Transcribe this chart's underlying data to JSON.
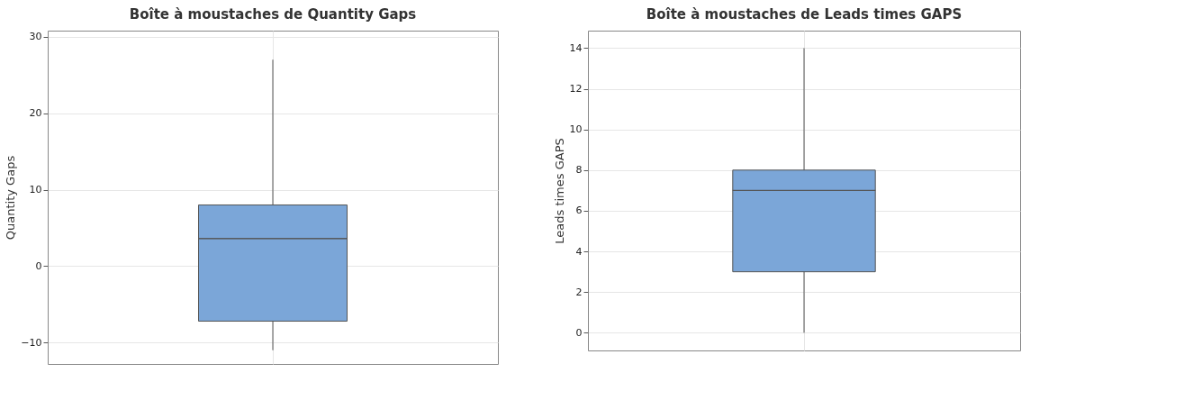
{
  "chart_data": [
    {
      "type": "box",
      "title": "Boîte à moustaches de Quantity Gaps",
      "ylabel": "Quantity Gaps",
      "categories": [
        null
      ],
      "series": [
        {
          "color": "#7ba6d8",
          "boxes": [
            {
              "low": -11,
              "q1": -7.2,
              "median": 3.6,
              "q3": 8,
              "high": 27
            }
          ]
        }
      ],
      "ylim": [
        -12.8,
        30.8
      ],
      "yticks": [
        -10,
        0,
        10,
        20,
        30
      ],
      "grid": true,
      "tick_labels": "y"
    },
    {
      "type": "box",
      "title": "Boîte à moustaches de Leads times GAPS",
      "ylabel": "Leads times GAPS",
      "categories": [
        null
      ],
      "series": [
        {
          "color": "#7ba6d8",
          "boxes": [
            {
              "low": 0,
              "q1": 3,
              "median": 7,
              "q3": 8,
              "high": 14
            }
          ]
        }
      ],
      "ylim": [
        -0.87,
        14.86
      ],
      "yticks": [
        0,
        2,
        4,
        6,
        8,
        10,
        12,
        14
      ],
      "grid": true,
      "tick_labels": "y"
    }
  ]
}
